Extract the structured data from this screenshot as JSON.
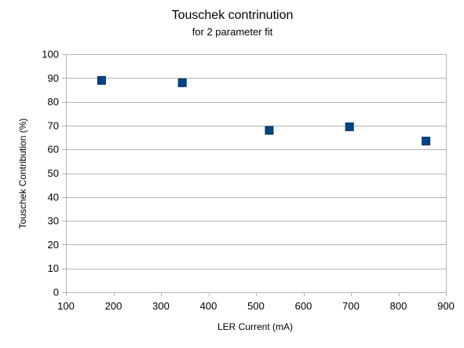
{
  "chart_data": {
    "type": "scatter",
    "title": "Touschek contrinution",
    "subtitle": "for 2 parameter fit",
    "xlabel": "LER Current (mA)",
    "ylabel": "Touschek Contribution (%)",
    "xlim": [
      100,
      900
    ],
    "ylim": [
      0,
      100
    ],
    "xticks": [
      100,
      200,
      300,
      400,
      500,
      600,
      700,
      800,
      900
    ],
    "yticks": [
      0,
      10,
      20,
      30,
      40,
      50,
      60,
      70,
      80,
      90,
      100
    ],
    "grid": true,
    "legend": "none",
    "marker": "square",
    "marker_color": "#004586",
    "series": [
      {
        "name": "Touschek Contribution",
        "x": [
          175,
          345,
          528,
          697,
          858
        ],
        "y": [
          89,
          88,
          68,
          69.5,
          63.5
        ]
      }
    ]
  }
}
